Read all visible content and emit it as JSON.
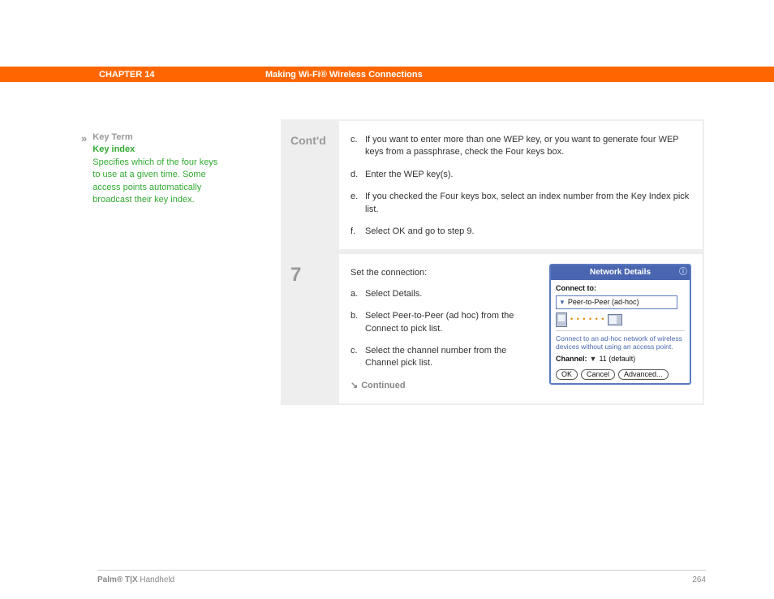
{
  "header": {
    "chapter": "CHAPTER 14",
    "title": "Making Wi-Fi® Wireless Connections"
  },
  "sidebar": {
    "label": "Key Term",
    "term": "Key index",
    "desc": "Specifies which of the four keys to use at a given time. Some access points automatically broadcast their key index."
  },
  "steps": {
    "contd": {
      "label": "Cont'd",
      "items": [
        {
          "idx": "c.",
          "text": "If you want to enter more than one WEP key, or you want to generate four WEP keys from a passphrase, check the Four keys box."
        },
        {
          "idx": "d.",
          "text": "Enter the WEP key(s)."
        },
        {
          "idx": "e.",
          "text": "If you checked the Four keys box, select an index number from the Key Index pick list."
        },
        {
          "idx": "f.",
          "text": "Select OK and go to step 9."
        }
      ]
    },
    "s7": {
      "num": "7",
      "lead": "Set the connection:",
      "items": [
        {
          "idx": "a.",
          "text": "Select Details."
        },
        {
          "idx": "b.",
          "text": "Select Peer-to-Peer (ad hoc) from the Connect to pick list."
        },
        {
          "idx": "c.",
          "text": "Select the channel number from the Channel pick list."
        }
      ],
      "continued": "Continued"
    }
  },
  "dialog": {
    "title": "Network Details",
    "connect_label": "Connect to:",
    "connect_value": "Peer-to-Peer (ad-hoc)",
    "desc": "Connect to an ad-hoc network of wireless devices without using an access point.",
    "channel_label": "Channel:",
    "channel_value": "11 (default)",
    "ok": "OK",
    "cancel": "Cancel",
    "advanced": "Advanced..."
  },
  "footer": {
    "brand_bold": "Palm® T|X",
    "brand_rest": " Handheld",
    "page": "264"
  }
}
